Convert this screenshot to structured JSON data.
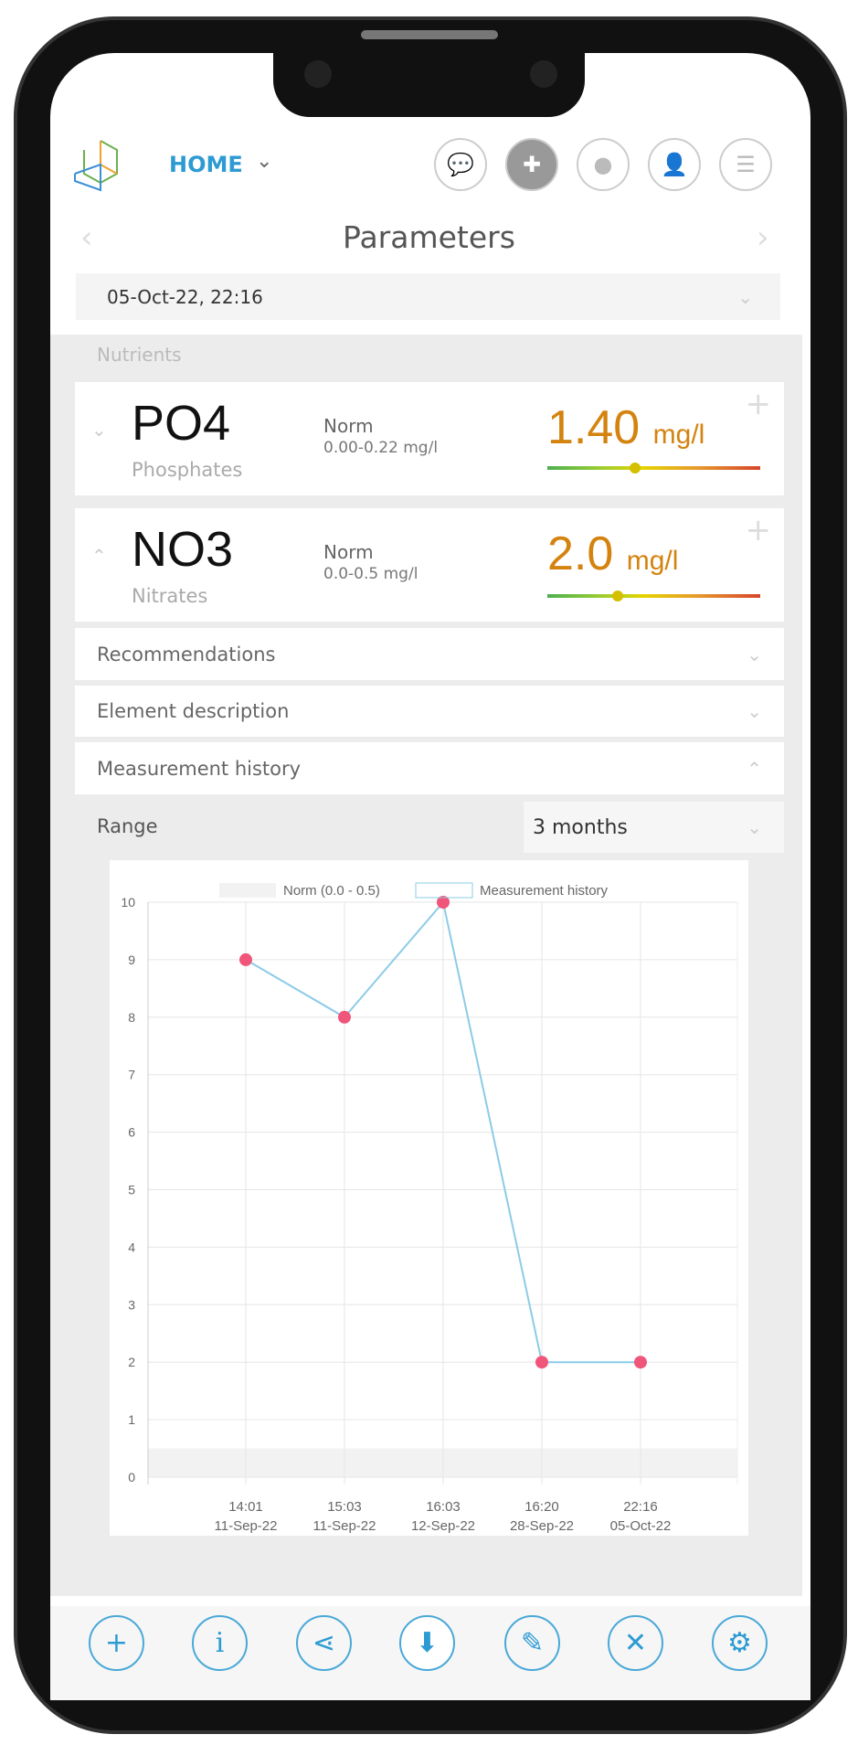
{
  "header": {
    "nav_label": "HOME",
    "icons": [
      "chat-icon",
      "uk-flag-icon",
      "globe-icon",
      "user-icon",
      "menu-icon"
    ]
  },
  "page": {
    "title": "Parameters",
    "date": "05-Oct-22, 22:16"
  },
  "section": {
    "title": "Nutrients"
  },
  "params": [
    {
      "symbol": "PO4",
      "name": "Phosphates",
      "norm_label": "Norm",
      "norm_range": "0.00-0.22 mg/l",
      "value": "1.40",
      "unit": "mg/l",
      "level": 0.41
    },
    {
      "symbol": "NO3",
      "name": "Nitrates",
      "norm_label": "Norm",
      "norm_range": "0.0-0.5 mg/l",
      "value": "2.0",
      "unit": "mg/l",
      "level": 0.33
    }
  ],
  "accordions": [
    "Recommendations",
    "Element description",
    "Measurement history"
  ],
  "range": {
    "label": "Range",
    "value": "3 months"
  },
  "colors": {
    "accent": "#2d9bd3",
    "value": "#d4830f",
    "point": "#f0557a",
    "line": "#8ccbe8"
  },
  "chart_data": {
    "type": "line",
    "legend": [
      "Norm (0.0 - 0.5)",
      "Measurement history"
    ],
    "legend_position": "top",
    "x_time": [
      "14:01",
      "15:03",
      "16:03",
      "16:20",
      "22:16"
    ],
    "x_date": [
      "11-Sep-22",
      "11-Sep-22",
      "12-Sep-22",
      "28-Sep-22",
      "05-Oct-22"
    ],
    "series": [
      {
        "name": "Measurement history",
        "values": [
          9,
          8,
          10,
          2,
          2
        ]
      }
    ],
    "norm_band": [
      0,
      0.5
    ],
    "ylim": [
      0,
      10
    ],
    "yticks": [
      0,
      1,
      2,
      3,
      4,
      5,
      6,
      7,
      8,
      9,
      10
    ],
    "grid": true
  },
  "bottom_nav": [
    "add-icon",
    "info-icon",
    "share-icon",
    "download-icon",
    "edit-icon",
    "close-icon",
    "settings-icon"
  ]
}
